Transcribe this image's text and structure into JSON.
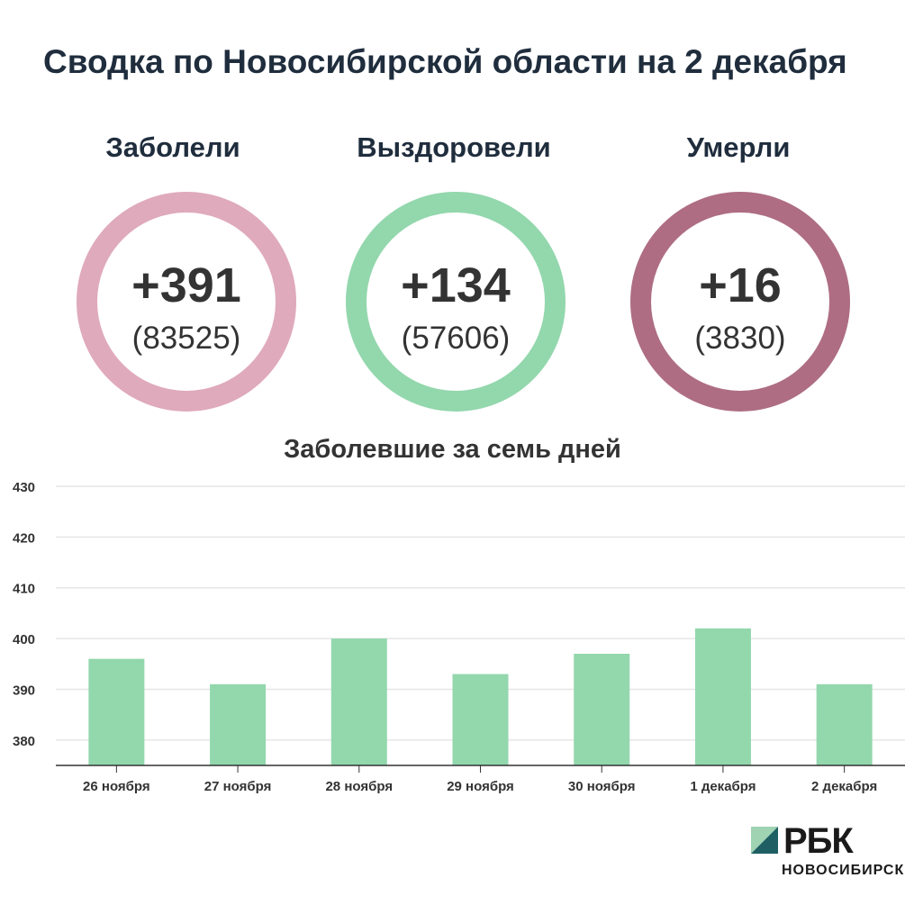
{
  "header": {
    "title": "Сводка по Новосибирской области на 2 декабря"
  },
  "stats": [
    {
      "label": "Заболели",
      "delta": "+391",
      "total": "(83525)",
      "color": "#dfaabb"
    },
    {
      "label": "Выздоровели",
      "delta": "+134",
      "total": "(57606)",
      "color": "#93d7ad"
    },
    {
      "label": "Умерли",
      "delta": "+16",
      "total": "(3830)",
      "color": "#ae6d83"
    }
  ],
  "chart_data": {
    "type": "bar",
    "title": "Заболевшие за семь дней",
    "categories": [
      "26 ноября",
      "27 ноября",
      "28 ноября",
      "29 ноября",
      "30 ноября",
      "1 декабря",
      "2 декабря"
    ],
    "values": [
      396,
      391,
      400,
      393,
      397,
      402,
      391
    ],
    "ylim": [
      375,
      430
    ],
    "yticks": [
      380,
      390,
      400,
      410,
      420,
      430
    ],
    "grid": true,
    "bar_color": "#93d7ad"
  },
  "logo": {
    "name": "РБК",
    "sub": "НОВОСИБИРСК"
  }
}
